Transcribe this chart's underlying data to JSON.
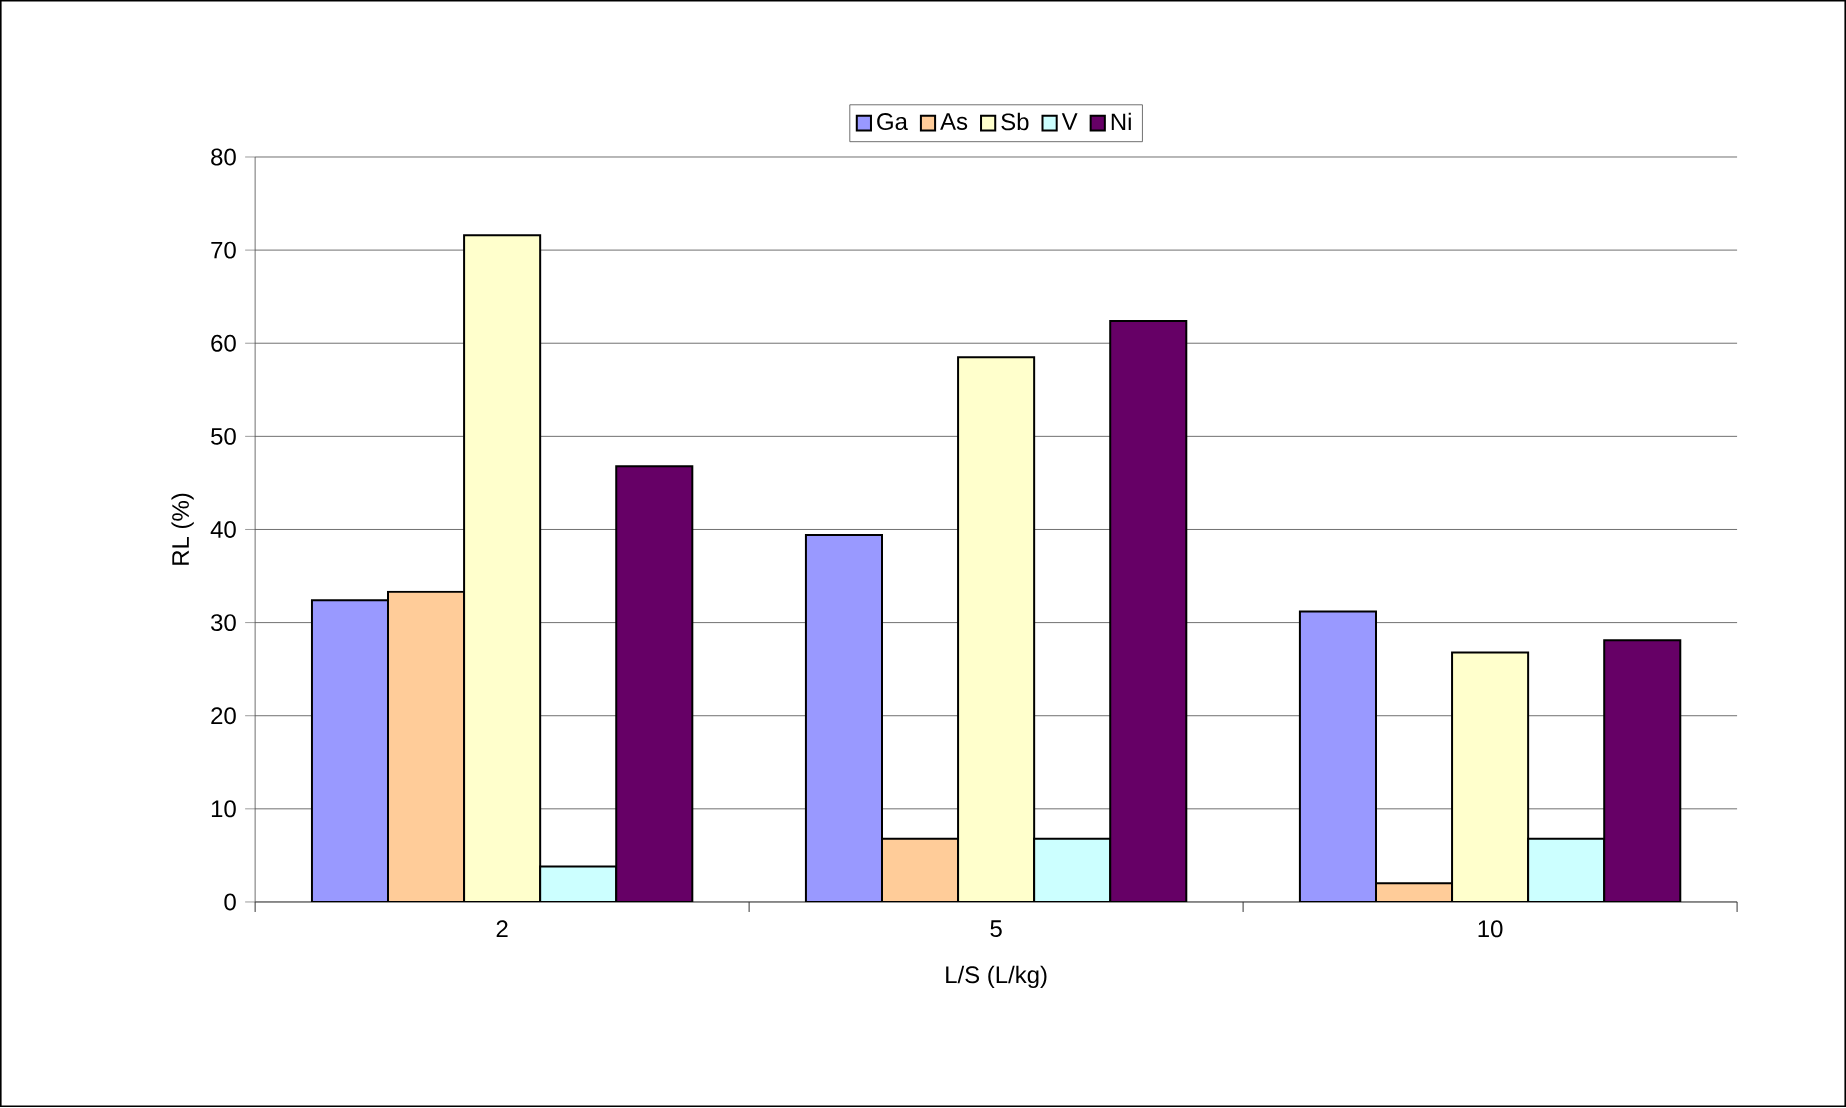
{
  "chart_data": {
    "type": "bar",
    "xlabel": "L/S (L/kg)",
    "ylabel": "RL (%)",
    "categories": [
      "2",
      "5",
      "10"
    ],
    "series": [
      {
        "name": "Ga",
        "color": "#9999ff",
        "values": [
          32.4,
          39.4,
          31.2
        ]
      },
      {
        "name": "As",
        "color": "#ffcc99",
        "values": [
          33.3,
          6.8,
          2.0
        ]
      },
      {
        "name": "Sb",
        "color": "#ffffcc",
        "values": [
          71.6,
          58.5,
          26.8
        ]
      },
      {
        "name": "V",
        "color": "#ccffff",
        "values": [
          3.8,
          6.8,
          6.8
        ]
      },
      {
        "name": "Ni",
        "color": "#660066",
        "values": [
          46.8,
          62.4,
          28.1
        ]
      }
    ],
    "ylim": [
      0,
      80
    ],
    "yticks": [
      0,
      10,
      20,
      30,
      40,
      50,
      60,
      70,
      80
    ],
    "grid": "y",
    "legend": "top"
  }
}
